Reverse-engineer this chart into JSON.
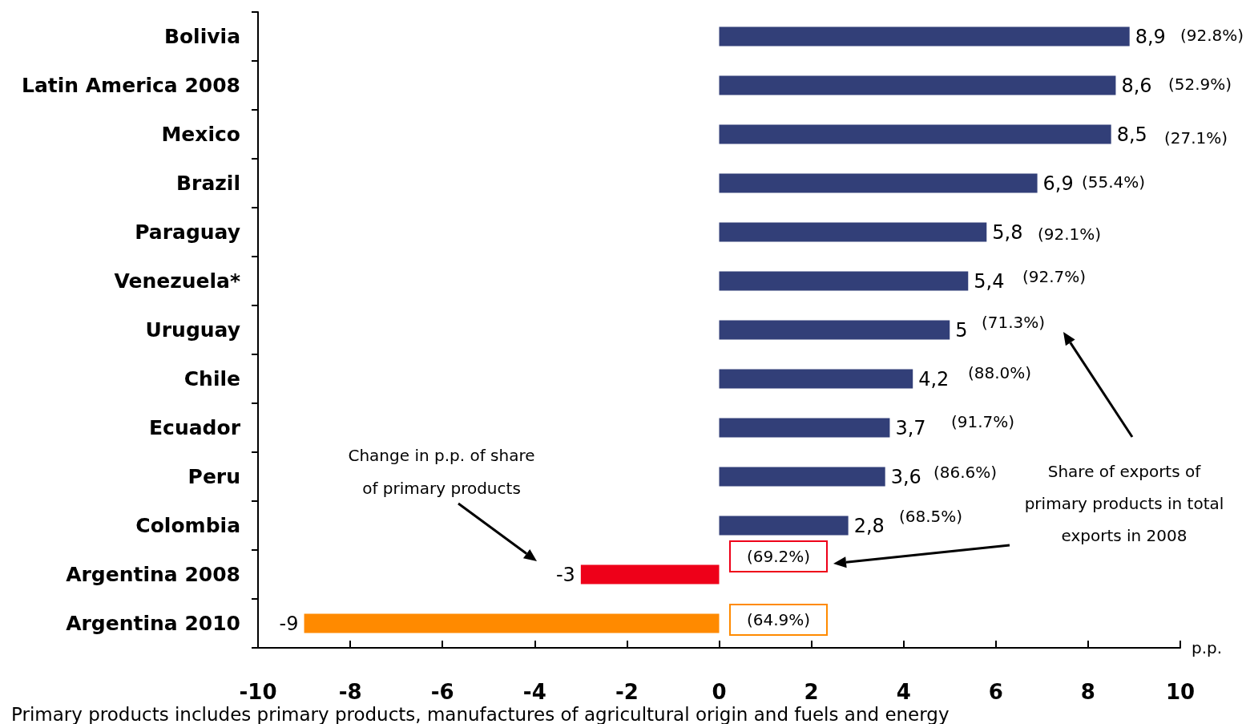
{
  "chart_data": {
    "type": "bar",
    "orientation": "horizontal",
    "categories": [
      "Bolivia",
      "Latin America 2008",
      "Mexico",
      "Brazil",
      "Paraguay",
      "Venezuela*",
      "Uruguay",
      "Chile",
      "Ecuador",
      "Peru",
      "Colombia",
      "Argentina 2008",
      "Argentina 2010"
    ],
    "values": [
      8.9,
      8.6,
      8.5,
      6.9,
      5.8,
      5.4,
      5,
      4.2,
      3.7,
      3.6,
      2.8,
      -3,
      -9
    ],
    "colors": [
      "#323f78",
      "#323f78",
      "#323f78",
      "#323f78",
      "#323f78",
      "#323f78",
      "#323f78",
      "#323f78",
      "#323f78",
      "#323f78",
      "#323f78",
      "#ee0019",
      "#ff8a00"
    ],
    "value_labels": [
      "8,9",
      "8,6",
      "8,5",
      "6,9",
      "5,8",
      "5,4",
      "5",
      "4,2",
      "3,7",
      "3,6",
      "2,8",
      "-3",
      "-9"
    ],
    "xlim": [
      -10,
      10
    ],
    "xticks": [
      -10,
      -8,
      -6,
      -4,
      -2,
      0,
      2,
      4,
      6,
      8,
      10
    ],
    "xlabel": "p.p.",
    "grid": false,
    "annotations": [
      "(92.8%)",
      "(52.9%)",
      "(27.1%)",
      "(55.4%)",
      "(92.1%)",
      "(92.7%)",
      "(71.3%)",
      "(88.0%)",
      "(91.7%)",
      "(86.6%)",
      "(68.5%)",
      "(69.2%)",
      "(64.9%)",
      "Change in p.p. of share\nof primary products",
      "Share of exports of\nprimary products in total\nexports in 2008",
      "Primary products includes primary products, manufactures of agricultural origin and fuels and energy"
    ]
  }
}
